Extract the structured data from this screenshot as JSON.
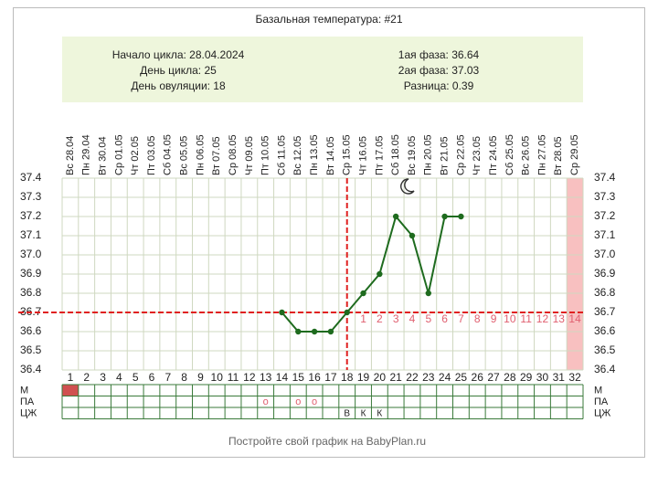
{
  "chart_data": {
    "type": "line",
    "title": "Базальная температура: #21",
    "info_left": [
      "Начало цикла: 28.04.2024",
      "День цикла: 25",
      "День овуляции: 18"
    ],
    "info_right": [
      "1ая фаза: 36.64",
      "2ая фаза: 37.03",
      "Разница: 0.39"
    ],
    "x": [
      1,
      2,
      3,
      4,
      5,
      6,
      7,
      8,
      9,
      10,
      11,
      12,
      13,
      14,
      15,
      16,
      17,
      18,
      19,
      20,
      21,
      22,
      23,
      24,
      25,
      26,
      27,
      28,
      29,
      30,
      31,
      32
    ],
    "dates": [
      "Вс 28.04",
      "Пн 29.04",
      "Вт 30.04",
      "Ср 01.05",
      "Чт 02.05",
      "Пт 03.05",
      "Сб 04.05",
      "Вс 05.05",
      "Пн 06.05",
      "Вт 07.05",
      "Ср 08.05",
      "Чт 09.05",
      "Пт 10.05",
      "Сб 11.05",
      "Вс 12.05",
      "Пн 13.05",
      "Вт 14.05",
      "Ср 15.05",
      "Чт 16.05",
      "Пт 17.05",
      "Сб 18.05",
      "Вс 19.05",
      "Пн 20.05",
      "Вт 21.05",
      "Ср 22.05",
      "Чт 23.05",
      "Пт 24.05",
      "Сб 25.05",
      "Вс 26.05",
      "Пн 27.05",
      "Вт 28.05",
      "Ср 29.05"
    ],
    "series": [
      {
        "name": "Температура",
        "color": "#1e6b1e",
        "values": [
          null,
          null,
          null,
          null,
          null,
          null,
          null,
          null,
          null,
          null,
          null,
          null,
          null,
          36.7,
          36.6,
          36.6,
          36.6,
          36.7,
          36.8,
          36.9,
          37.2,
          37.1,
          36.8,
          37.2,
          37.2,
          null,
          null,
          null,
          null,
          null,
          null,
          null
        ]
      }
    ],
    "ylim": [
      36.4,
      37.4
    ],
    "yticks": [
      36.4,
      36.5,
      36.6,
      36.7,
      36.8,
      36.9,
      {
        "value": 37,
        "label": "37.0"
      },
      37.1,
      37.2,
      37.3,
      37.4
    ],
    "coverline": 36.7,
    "ovulation_day": 18,
    "marker_color": "#e02020",
    "phase_days": [
      1,
      2,
      3,
      4,
      5,
      6,
      7,
      8,
      9,
      10,
      11,
      12,
      13,
      14
    ],
    "highlight_day": 32,
    "grid": true,
    "rows": [
      {
        "name": "М",
        "filled": [
          1
        ]
      },
      {
        "name": "ПА",
        "marks": [
          {
            "day": 13,
            "text": "o"
          },
          {
            "day": 15,
            "text": "o"
          },
          {
            "day": 16,
            "text": "o"
          }
        ]
      },
      {
        "name": "ЦЖ",
        "marks": [
          {
            "day": 18,
            "text": "В"
          },
          {
            "day": 19,
            "text": "К"
          },
          {
            "day": 20,
            "text": "К"
          }
        ]
      }
    ],
    "footer": "Постройте свой график на BabyPlan.ru"
  }
}
